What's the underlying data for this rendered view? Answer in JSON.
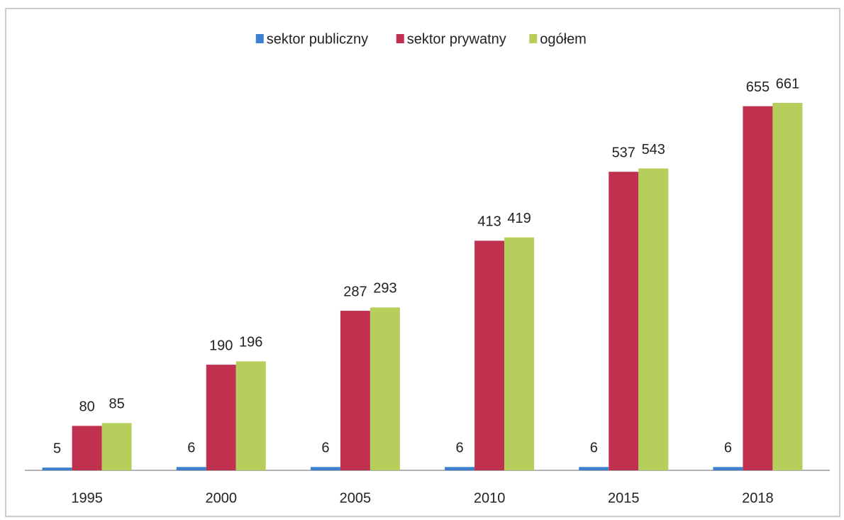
{
  "chart_data": {
    "type": "bar",
    "categories": [
      "1995",
      "2000",
      "2005",
      "2010",
      "2015",
      "2018"
    ],
    "series": [
      {
        "name": "sektor publiczny",
        "color": "#3d80cf",
        "values": [
          5,
          6,
          6,
          6,
          6,
          6
        ]
      },
      {
        "name": "sektor prywatny",
        "color": "#c0304f",
        "values": [
          80,
          190,
          287,
          413,
          537,
          655
        ]
      },
      {
        "name": "ogółem",
        "color": "#b6cf5c",
        "values": [
          85,
          196,
          293,
          419,
          543,
          661
        ]
      }
    ],
    "legend": "top"
  }
}
